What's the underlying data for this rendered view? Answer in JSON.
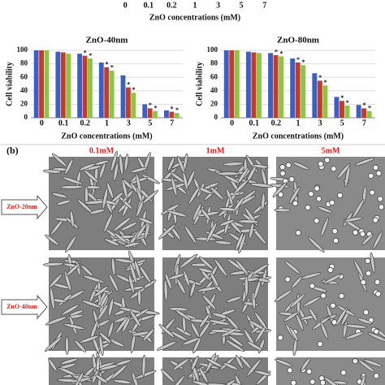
{
  "chart_data": [
    {
      "type": "bar",
      "categories": [
        "0",
        "0.1",
        "0.2",
        "1",
        "3",
        "5",
        "7"
      ],
      "xlabel": "ZnO concentrations (mM)"
    },
    {
      "type": "bar",
      "title": "ZnO-40nm",
      "xlabel": "ZnO concentrations (mM)",
      "ylabel": "Cell viability",
      "categories": [
        "0",
        "0.1",
        "0.2",
        "1",
        "3",
        "5",
        "7"
      ],
      "series": [
        {
          "color": "#3c5fc4",
          "values": [
            100,
            98,
            95,
            82,
            63,
            20,
            11
          ]
        },
        {
          "color": "#c33a2e",
          "values": [
            100,
            97,
            92,
            75,
            45,
            14,
            9
          ]
        },
        {
          "color": "#8cc63f",
          "values": [
            100,
            95,
            88,
            70,
            37,
            10,
            7
          ]
        }
      ],
      "ylim": [
        0,
        100
      ],
      "yticks": [
        0,
        20,
        40,
        60,
        80,
        100
      ],
      "marker": "*"
    },
    {
      "type": "bar",
      "title": "ZnO-80nm",
      "xlabel": "ZnO concentrations (mM)",
      "ylabel": "Cell viability",
      "categories": [
        "0",
        "0.1",
        "0.2",
        "1",
        "3",
        "5",
        "7"
      ],
      "series": [
        {
          "color": "#3c5fc4",
          "values": [
            100,
            98,
            96,
            88,
            66,
            31,
            19
          ]
        },
        {
          "color": "#c33a2e",
          "values": [
            100,
            97,
            93,
            82,
            55,
            25,
            14
          ]
        },
        {
          "color": "#8cc63f",
          "values": [
            100,
            96,
            91,
            78,
            48,
            18,
            10
          ]
        }
      ],
      "ylim": [
        0,
        100
      ],
      "yticks": [
        0,
        20,
        40,
        60,
        80,
        100
      ],
      "marker": "*"
    }
  ],
  "panel_b": {
    "label": "(b)",
    "columns": [
      "0.1mM",
      "1mM",
      "5mM"
    ],
    "rows": [
      "ZnO-20nm",
      "ZnO-40nm"
    ]
  }
}
